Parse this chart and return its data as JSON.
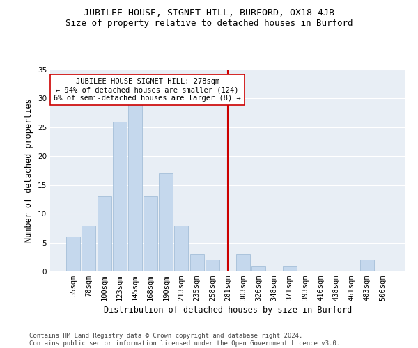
{
  "title": "JUBILEE HOUSE, SIGNET HILL, BURFORD, OX18 4JB",
  "subtitle": "Size of property relative to detached houses in Burford",
  "xlabel": "Distribution of detached houses by size in Burford",
  "ylabel": "Number of detached properties",
  "categories": [
    "55sqm",
    "78sqm",
    "100sqm",
    "123sqm",
    "145sqm",
    "168sqm",
    "190sqm",
    "213sqm",
    "235sqm",
    "258sqm",
    "281sqm",
    "303sqm",
    "326sqm",
    "348sqm",
    "371sqm",
    "393sqm",
    "416sqm",
    "438sqm",
    "461sqm",
    "483sqm",
    "506sqm"
  ],
  "values": [
    6,
    8,
    13,
    26,
    29,
    13,
    17,
    8,
    3,
    2,
    0,
    3,
    1,
    0,
    1,
    0,
    0,
    0,
    0,
    2,
    0
  ],
  "bar_color": "#c5d8ed",
  "bar_edge_color": "#9ab8d4",
  "vline_x": 10.0,
  "vline_color": "#cc0000",
  "annotation_text": "JUBILEE HOUSE SIGNET HILL: 278sqm\n← 94% of detached houses are smaller (124)\n6% of semi-detached houses are larger (8) →",
  "annotation_box_color": "#ffffff",
  "annotation_box_edge": "#cc0000",
  "ylim": [
    0,
    35
  ],
  "yticks": [
    0,
    5,
    10,
    15,
    20,
    25,
    30,
    35
  ],
  "background_color": "#e8eef5",
  "footer_line1": "Contains HM Land Registry data © Crown copyright and database right 2024.",
  "footer_line2": "Contains public sector information licensed under the Open Government Licence v3.0.",
  "title_fontsize": 9.5,
  "subtitle_fontsize": 9,
  "xlabel_fontsize": 8.5,
  "ylabel_fontsize": 8.5,
  "tick_fontsize": 7.5,
  "annotation_fontsize": 7.5,
  "footer_fontsize": 6.5
}
